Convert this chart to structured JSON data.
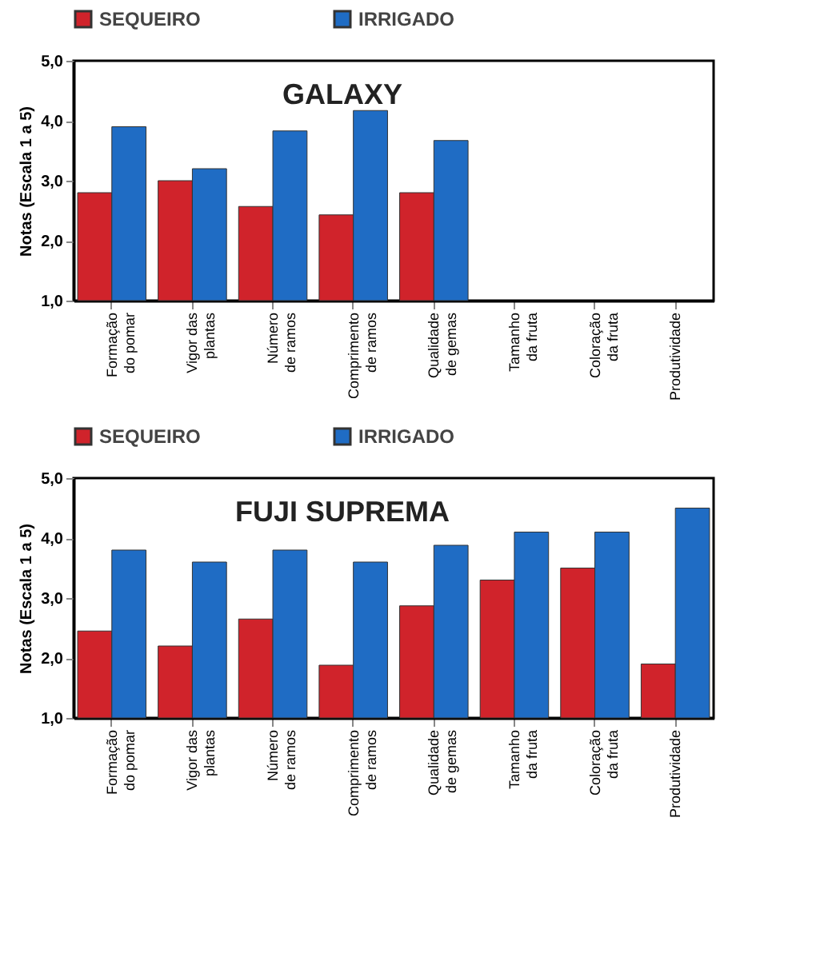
{
  "chart_data": [
    {
      "type": "bar",
      "title": "GALAXY",
      "ylabel": "Notas (Escala 1 a 5)",
      "categories": [
        "Formação do pomar",
        "Vigor das plantas",
        "Número de ramos",
        "Comprimento de ramos",
        "Qualidade de gemas",
        "Tamanho da fruta",
        "Coloração da fruta",
        "Produtividade"
      ],
      "series": [
        {
          "name": "SEQUEIRO",
          "color": "#d0232b",
          "values": [
            2.8,
            3.0,
            2.57,
            2.43,
            2.8,
            null,
            null,
            null
          ]
        },
        {
          "name": "IRRIGADO",
          "color": "#1f6cc4",
          "values": [
            3.9,
            3.2,
            3.83,
            4.17,
            3.67,
            null,
            null,
            null
          ]
        }
      ],
      "ylim": [
        1,
        5
      ],
      "yticks": [
        {
          "value": 1,
          "label": "1,0"
        },
        {
          "value": 2,
          "label": "2,0"
        },
        {
          "value": 3,
          "label": "3,0"
        },
        {
          "value": 4,
          "label": "4,0"
        },
        {
          "value": 5,
          "label": "5,0"
        }
      ],
      "legend": "top"
    },
    {
      "type": "bar",
      "title": "FUJI SUPREMA",
      "ylabel": "Notas (Escala 1 a 5)",
      "categories": [
        "Formação do pomar",
        "Vigor das plantas",
        "Número de ramos",
        "Comprimento de ramos",
        "Qualidade de gemas",
        "Tamanho da fruta",
        "Coloração da fruta",
        "Produtividade"
      ],
      "series": [
        {
          "name": "SEQUEIRO",
          "color": "#d0232b",
          "values": [
            2.45,
            2.2,
            2.65,
            1.88,
            2.87,
            3.3,
            3.5,
            1.9
          ]
        },
        {
          "name": "IRRIGADO",
          "color": "#1f6cc4",
          "values": [
            3.8,
            3.6,
            3.8,
            3.6,
            3.88,
            4.1,
            4.1,
            4.5
          ]
        }
      ],
      "ylim": [
        1,
        5
      ],
      "yticks": [
        {
          "value": 1,
          "label": "1,0"
        },
        {
          "value": 2,
          "label": "2,0"
        },
        {
          "value": 3,
          "label": "3,0"
        },
        {
          "value": 4,
          "label": "4,0"
        },
        {
          "value": 5,
          "label": "5,0"
        }
      ],
      "legend": "top"
    }
  ]
}
